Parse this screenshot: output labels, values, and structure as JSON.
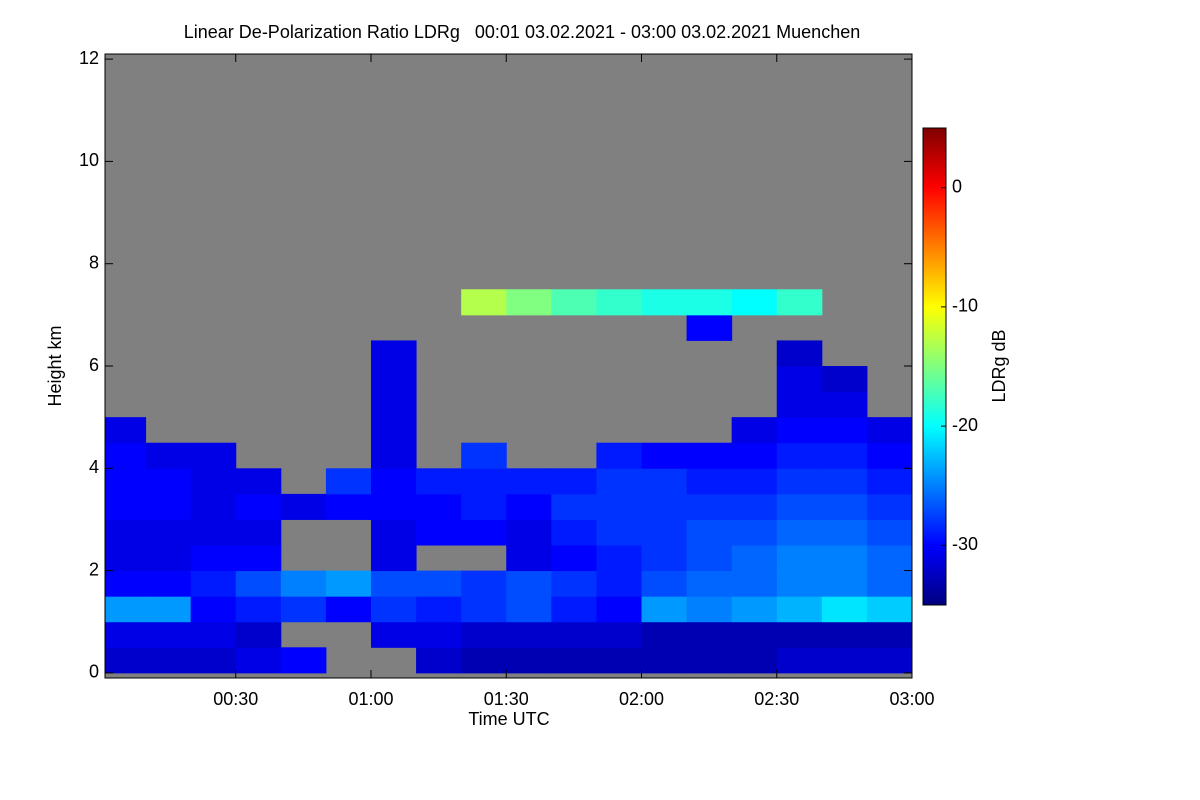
{
  "chart_data": {
    "type": "heatmap",
    "title": "Linear De-Polarization Ratio LDRg   00:01 03.02.2021 - 03:00 03.02.2021 Muenchen",
    "xlabel": "Time UTC",
    "ylabel": "Height km",
    "xlim": [
      1,
      180
    ],
    "xticks": [
      {
        "value": 30,
        "label": "00:30"
      },
      {
        "value": 60,
        "label": "01:00"
      },
      {
        "value": 90,
        "label": "01:30"
      },
      {
        "value": 120,
        "label": "02:00"
      },
      {
        "value": 150,
        "label": "02:30"
      },
      {
        "value": 180,
        "label": "03:00"
      }
    ],
    "ylim": [
      -0.1,
      12.1
    ],
    "yticks": [
      0,
      2,
      4,
      6,
      8,
      10,
      12
    ],
    "x_edges": [
      1,
      10,
      20,
      30,
      40,
      50,
      60,
      70,
      80,
      90,
      100,
      110,
      120,
      130,
      140,
      150,
      160,
      170,
      180
    ],
    "y_edges": [
      0,
      0.5,
      1,
      1.5,
      2,
      2.5,
      3,
      3.5,
      4,
      4.5,
      5,
      5.5,
      6,
      6.5,
      7,
      7.5
    ],
    "values": [
      [
        -32,
        -31,
        -24,
        -30,
        -31,
        -31,
        -30,
        -30,
        -30,
        -31,
        null,
        null,
        null,
        null,
        null
      ],
      [
        -32,
        -31,
        -24,
        -30,
        -31,
        -31,
        -30,
        -30,
        -31,
        null,
        null,
        null,
        null,
        null,
        null
      ],
      [
        -32,
        -31,
        -30,
        -29,
        -30,
        -31,
        -31,
        -31,
        -31,
        null,
        null,
        null,
        null,
        null,
        null
      ],
      [
        -31,
        -32,
        -29,
        -27,
        -30,
        -31,
        -30,
        -31,
        null,
        null,
        null,
        null,
        null,
        null,
        null
      ],
      [
        -30,
        null,
        -28,
        -25,
        null,
        null,
        -31,
        null,
        null,
        null,
        null,
        null,
        null,
        null,
        null
      ],
      [
        null,
        null,
        -30,
        -24,
        null,
        null,
        -30,
        -28,
        null,
        null,
        null,
        null,
        null,
        null,
        null
      ],
      [
        null,
        -31,
        -28,
        -27,
        -31,
        -31,
        -30,
        -30,
        -31,
        -31,
        -31,
        -31,
        -31,
        null,
        null
      ],
      [
        -32,
        -31,
        -29,
        -27,
        null,
        -30,
        -30,
        -29,
        null,
        null,
        null,
        null,
        null,
        null,
        null
      ],
      [
        -33,
        -32,
        -28,
        -28,
        null,
        -30,
        -29,
        -29,
        -28,
        null,
        null,
        null,
        null,
        null,
        -13
      ],
      [
        -33,
        -32,
        -27,
        -27,
        -31,
        -31,
        -30,
        -29,
        null,
        null,
        null,
        null,
        null,
        null,
        -15
      ],
      [
        -33,
        -32,
        -29,
        -28,
        -30,
        -29,
        -28,
        -29,
        null,
        null,
        null,
        null,
        null,
        null,
        -17
      ],
      [
        -33,
        -32,
        -30,
        -29,
        -29,
        -28,
        -28,
        -28,
        -29,
        null,
        null,
        null,
        null,
        null,
        -18
      ],
      [
        -33,
        -33,
        -24,
        -27,
        -28,
        -28,
        -28,
        -28,
        -30,
        null,
        null,
        null,
        null,
        null,
        -19
      ],
      [
        -33,
        -33,
        -25,
        -26,
        -27,
        -27,
        -28,
        -29,
        -30,
        null,
        null,
        null,
        null,
        -30,
        -19
      ],
      [
        -33,
        -33,
        -24,
        -26,
        -26,
        -27,
        -28,
        -29,
        -30,
        -31,
        null,
        null,
        null,
        null,
        -20
      ],
      [
        -32,
        -33,
        -23,
        -25,
        -25,
        -26,
        -27,
        -28,
        -29,
        -30,
        -31,
        -31,
        -32,
        null,
        -18
      ],
      [
        -32,
        -33,
        -21,
        -25,
        -25,
        -26,
        -27,
        -28,
        -29,
        -30,
        -31,
        -32,
        null,
        null,
        null
      ],
      [
        -32,
        -33,
        -22,
        -26,
        -26,
        -27,
        -28,
        -29,
        -30,
        -31,
        null,
        null,
        null,
        null,
        null
      ]
    ],
    "colorbar_label": "LDRg dB",
    "clim": [
      -35,
      5
    ],
    "cticks": [
      0,
      -10,
      -20,
      -30
    ],
    "colormap": "jet",
    "missing_color": "#808080"
  }
}
